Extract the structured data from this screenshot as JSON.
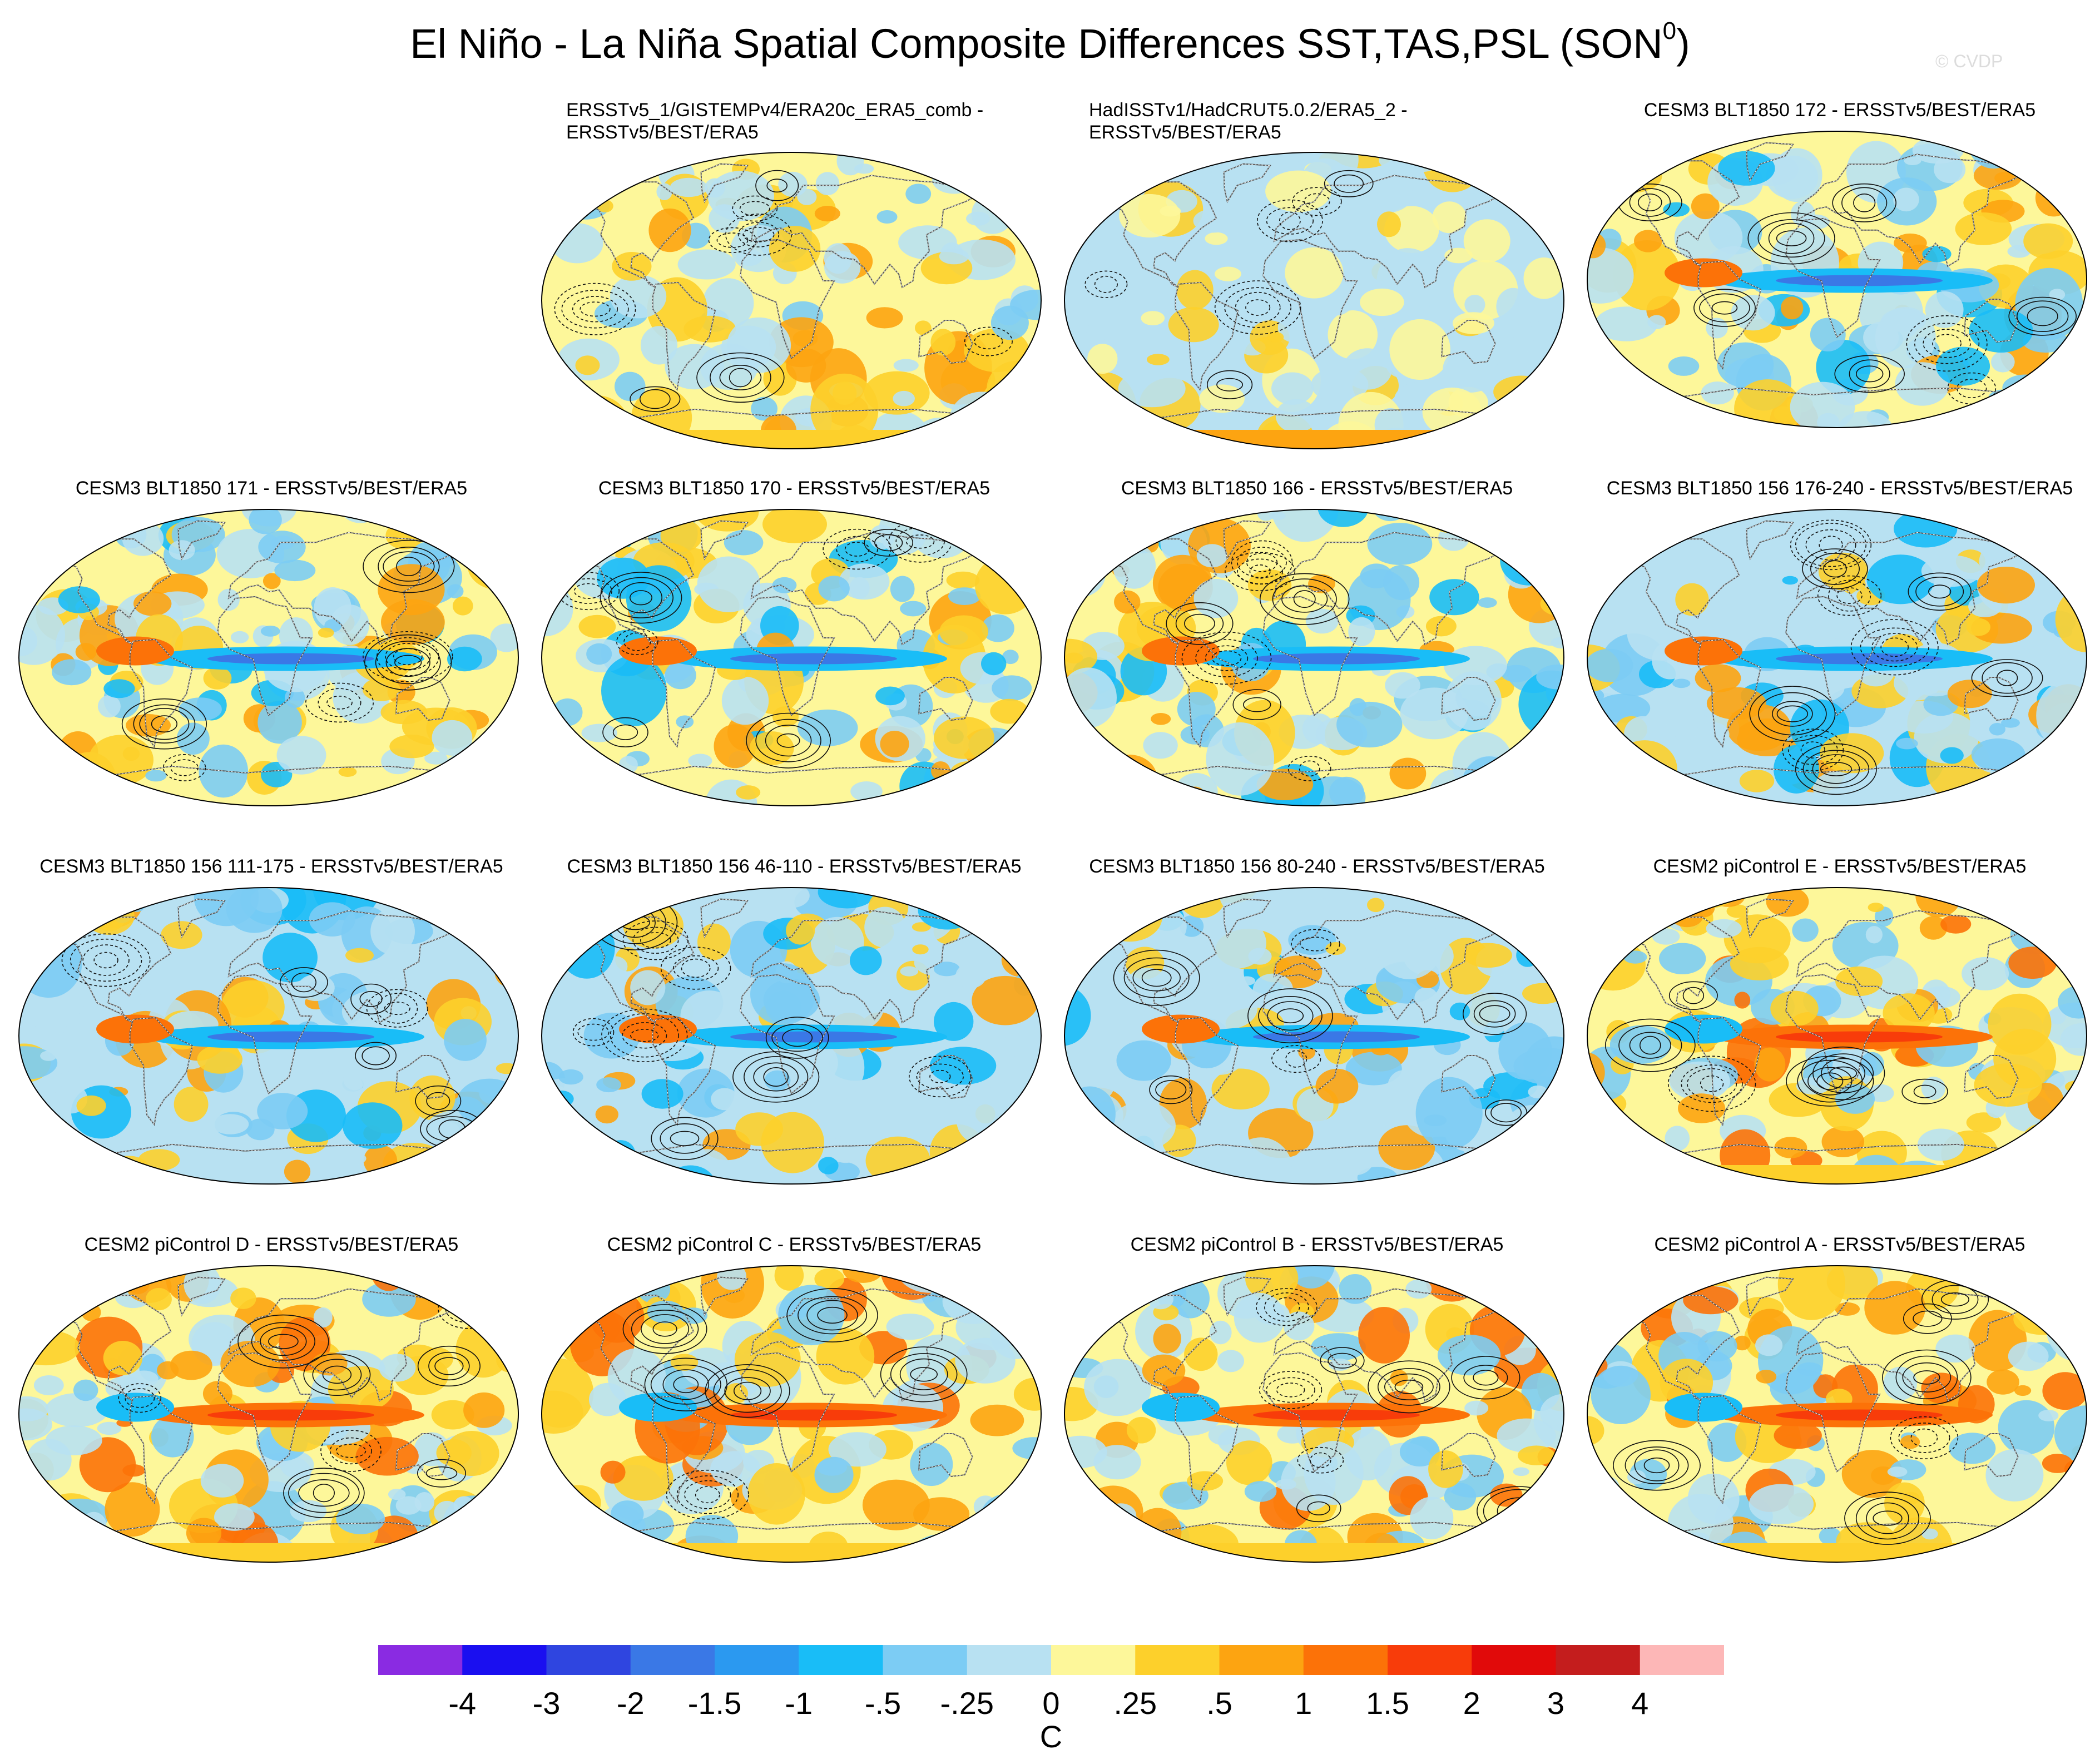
{
  "title": "El Niño - La Niña Spatial Composite Differences SST,TAS,PSL (SON",
  "title_superscript": "0",
  "watermark": "© CVDP",
  "chart_data": {
    "type": "heatmap",
    "description_units": "C",
    "contour_field": "PSL",
    "panels": [
      {
        "title": "ERSSTv5_1/GISTEMPv4/ERA20c_ERA5_comb - ERSSTv5/BEST/ERA5",
        "title_line1": "ERSSTv5_1/GISTEMPv4/ERA20c_ERA5_comb -",
        "title_line2": "ERSSTv5/BEST/ERA5",
        "row": 0,
        "col": 1,
        "pattern": 0
      },
      {
        "title": "HadISSTv1/HadCRUT5.0.2/ERA5_2 - ERSSTv5/BEST/ERA5",
        "title_line1": "HadISSTv1/HadCRUT5.0.2/ERA5_2 -",
        "title_line2": "ERSSTv5/BEST/ERA5",
        "row": 0,
        "col": 2,
        "pattern": 1
      },
      {
        "title": "CESM3 BLT1850 172 - ERSSTv5/BEST/ERA5",
        "row": 0,
        "col": 3,
        "pattern": 2
      },
      {
        "title": "CESM3 BLT1850 171 - ERSSTv5/BEST/ERA5",
        "row": 1,
        "col": 0,
        "pattern": 2
      },
      {
        "title": "CESM3 BLT1850 170 - ERSSTv5/BEST/ERA5",
        "row": 1,
        "col": 1,
        "pattern": 2
      },
      {
        "title": "CESM3 BLT1850 166 - ERSSTv5/BEST/ERA5",
        "row": 1,
        "col": 2,
        "pattern": 2
      },
      {
        "title": "CESM3 BLT1850 156 176-240 - ERSSTv5/BEST/ERA5",
        "row": 1,
        "col": 3,
        "pattern": 3
      },
      {
        "title": "CESM3 BLT1850 156 111-175 - ERSSTv5/BEST/ERA5",
        "row": 2,
        "col": 0,
        "pattern": 3
      },
      {
        "title": "CESM3 BLT1850 156 46-110 - ERSSTv5/BEST/ERA5",
        "row": 2,
        "col": 1,
        "pattern": 3
      },
      {
        "title": "CESM3 BLT1850 156 80-240 - ERSSTv5/BEST/ERA5",
        "row": 2,
        "col": 2,
        "pattern": 3
      },
      {
        "title": "CESM2 piControl E - ERSSTv5/BEST/ERA5",
        "row": 2,
        "col": 3,
        "pattern": 4
      },
      {
        "title": "CESM2 piControl D - ERSSTv5/BEST/ERA5",
        "row": 3,
        "col": 0,
        "pattern": 4
      },
      {
        "title": "CESM2 piControl C - ERSSTv5/BEST/ERA5",
        "row": 3,
        "col": 1,
        "pattern": 4
      },
      {
        "title": "CESM2 piControl B - ERSSTv5/BEST/ERA5",
        "row": 3,
        "col": 2,
        "pattern": 4
      },
      {
        "title": "CESM2 piControl A - ERSSTv5/BEST/ERA5",
        "row": 3,
        "col": 3,
        "pattern": 4
      }
    ],
    "colorbar": {
      "units": "C",
      "levels": [
        "-4",
        "-3",
        "-2",
        "-1.5",
        "-1",
        "-.5",
        "-.25",
        "0",
        ".25",
        ".5",
        "1",
        "1.5",
        "2",
        "3",
        "4"
      ],
      "colors": [
        "#8a2be2",
        "#1a0ff0",
        "#2f45e0",
        "#3a78e6",
        "#2b99f0",
        "#19bdf7",
        "#7cccf4",
        "#b8e1f2",
        "#fdf79a",
        "#fdd02b",
        "#fda411",
        "#fc7208",
        "#f83c0a",
        "#e10a0a",
        "#c41d1d",
        "#fdb7b7"
      ]
    }
  }
}
